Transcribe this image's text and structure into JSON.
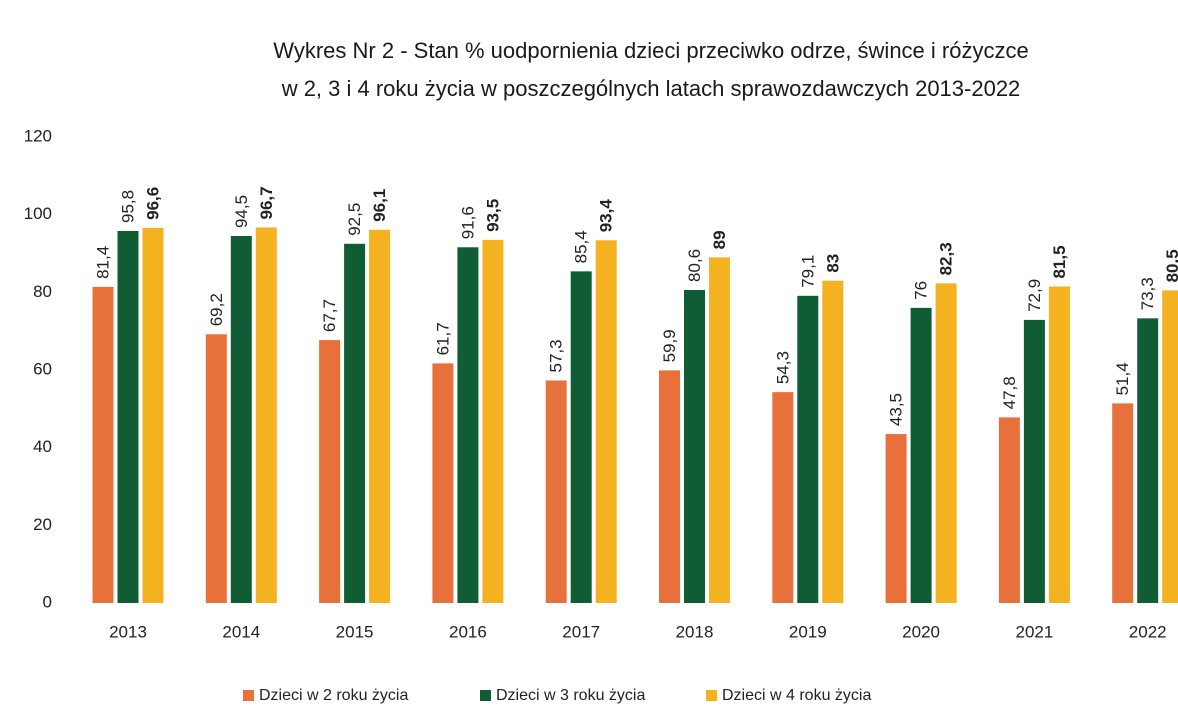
{
  "chart_data": {
    "type": "bar",
    "title": [
      "Wykres Nr 2 - Stan % uodpornienia dzieci przeciwko odrze, śwince i różyczce",
      "w 2, 3 i 4 roku życia w poszczególnych latach sprawozdawczych 2013-2022"
    ],
    "categories": [
      "2013",
      "2014",
      "2015",
      "2016",
      "2017",
      "2018",
      "2019",
      "2020",
      "2021",
      "2022"
    ],
    "series": [
      {
        "name": "Dzieci w 2 roku życia",
        "color": "#e8703a",
        "values": [
          81.4,
          69.2,
          67.7,
          61.7,
          57.3,
          59.9,
          54.3,
          43.5,
          47.8,
          51.4
        ],
        "value_labels": [
          "81,4",
          "69,2",
          "67,7",
          "61,7",
          "57,3",
          "59,9",
          "54,3",
          "43,5",
          "47,8",
          "51,4"
        ]
      },
      {
        "name": "Dzieci w 3 roku życia",
        "color": "#0f5c35",
        "values": [
          95.8,
          94.5,
          92.5,
          91.6,
          85.4,
          80.6,
          79.1,
          76,
          72.9,
          73.3
        ],
        "value_labels": [
          "95,8",
          "94,5",
          "92,5",
          "91,6",
          "85,4",
          "80,6",
          "79,1",
          "76",
          "72,9",
          "73,3"
        ]
      },
      {
        "name": "Dzieci w 4 roku życia",
        "color": "#f4b120",
        "values": [
          96.6,
          96.7,
          96.1,
          93.5,
          93.4,
          89,
          83,
          82.3,
          81.5,
          80.5
        ],
        "value_labels": [
          "96,6",
          "96,7",
          "96,1",
          "93,5",
          "93,4",
          "89",
          "83",
          "82,3",
          "81,5",
          "80,5"
        ]
      }
    ],
    "ylim": [
      0,
      120
    ],
    "yticks": [
      0,
      20,
      40,
      60,
      80,
      100,
      120
    ],
    "grid": false,
    "legend": "bottom"
  }
}
